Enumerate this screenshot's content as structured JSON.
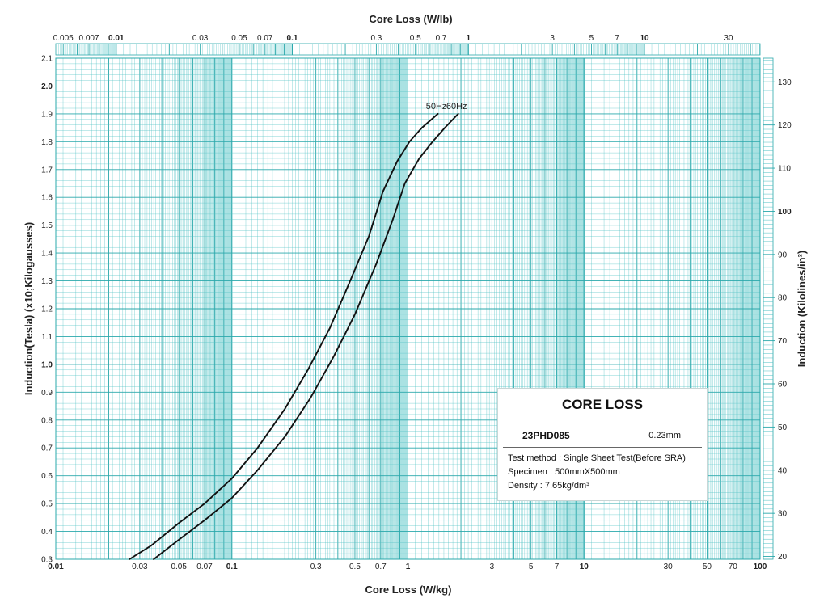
{
  "chart_data": {
    "type": "line",
    "title": "",
    "xlabel": "Core Loss (W/kg)",
    "xlabel_top": "Core Loss (W/lb)",
    "ylabel": "Induction(Tesla) (x10;Kilogausses)",
    "ylabel_right": "Induction (Kilolines/in²)",
    "x_scale": "log",
    "xlim": [
      0.01,
      100
    ],
    "ylim": [
      0.3,
      2.1
    ],
    "grid": true,
    "x_ticks": [
      {
        "v": 0.01,
        "label": "0.01",
        "bold": true
      },
      {
        "v": 0.03,
        "label": "0.03",
        "bold": false
      },
      {
        "v": 0.05,
        "label": "0.05",
        "bold": false
      },
      {
        "v": 0.07,
        "label": "0.07",
        "bold": false
      },
      {
        "v": 0.1,
        "label": "0.1",
        "bold": true
      },
      {
        "v": 0.3,
        "label": "0.3",
        "bold": false
      },
      {
        "v": 0.5,
        "label": "0.5",
        "bold": false
      },
      {
        "v": 0.7,
        "label": "0.7",
        "bold": false
      },
      {
        "v": 1,
        "label": "1",
        "bold": true
      },
      {
        "v": 3,
        "label": "3",
        "bold": false
      },
      {
        "v": 5,
        "label": "5",
        "bold": false
      },
      {
        "v": 7,
        "label": "7",
        "bold": false
      },
      {
        "v": 10,
        "label": "10",
        "bold": true
      },
      {
        "v": 30,
        "label": "30",
        "bold": false
      },
      {
        "v": 50,
        "label": "50",
        "bold": false
      },
      {
        "v": 70,
        "label": "70",
        "bold": false
      },
      {
        "v": 100,
        "label": "100",
        "bold": true
      }
    ],
    "x_top_ticks": [
      {
        "v": 0.005,
        "label": "0.005",
        "bold": false
      },
      {
        "v": 0.007,
        "label": "0.007",
        "bold": false
      },
      {
        "v": 0.01,
        "label": "0.01",
        "bold": true
      },
      {
        "v": 0.03,
        "label": "0.03",
        "bold": false
      },
      {
        "v": 0.05,
        "label": "0.05",
        "bold": false
      },
      {
        "v": 0.07,
        "label": "0.07",
        "bold": false
      },
      {
        "v": 0.1,
        "label": "0.1",
        "bold": true
      },
      {
        "v": 0.3,
        "label": "0.3",
        "bold": false
      },
      {
        "v": 0.5,
        "label": "0.5",
        "bold": false
      },
      {
        "v": 0.7,
        "label": "0.7",
        "bold": false
      },
      {
        "v": 1,
        "label": "1",
        "bold": true
      },
      {
        "v": 3,
        "label": "3",
        "bold": false
      },
      {
        "v": 5,
        "label": "5",
        "bold": false
      },
      {
        "v": 7,
        "label": "7",
        "bold": false
      },
      {
        "v": 10,
        "label": "10",
        "bold": true
      },
      {
        "v": 30,
        "label": "30",
        "bold": false
      }
    ],
    "y_ticks": [
      {
        "v": 0.3,
        "label": "0.3",
        "bold": false
      },
      {
        "v": 0.4,
        "label": "0.4",
        "bold": false
      },
      {
        "v": 0.5,
        "label": "0.5",
        "bold": false
      },
      {
        "v": 0.6,
        "label": "0.6",
        "bold": false
      },
      {
        "v": 0.7,
        "label": "0.7",
        "bold": false
      },
      {
        "v": 0.8,
        "label": "0.8",
        "bold": false
      },
      {
        "v": 0.9,
        "label": "0.9",
        "bold": false
      },
      {
        "v": 1.0,
        "label": "1.0",
        "bold": true
      },
      {
        "v": 1.1,
        "label": "1.1",
        "bold": false
      },
      {
        "v": 1.2,
        "label": "1.2",
        "bold": false
      },
      {
        "v": 1.3,
        "label": "1.3",
        "bold": false
      },
      {
        "v": 1.4,
        "label": "1.4",
        "bold": false
      },
      {
        "v": 1.5,
        "label": "1.5",
        "bold": false
      },
      {
        "v": 1.6,
        "label": "1.6",
        "bold": false
      },
      {
        "v": 1.7,
        "label": "1.7",
        "bold": false
      },
      {
        "v": 1.8,
        "label": "1.8",
        "bold": false
      },
      {
        "v": 1.9,
        "label": "1.9",
        "bold": false
      },
      {
        "v": 2.0,
        "label": "2.0",
        "bold": true
      },
      {
        "v": 2.1,
        "label": "2.1",
        "bold": false
      }
    ],
    "y_right_ticks": [
      {
        "v": 20,
        "label": "20",
        "bold": false
      },
      {
        "v": 30,
        "label": "30",
        "bold": false
      },
      {
        "v": 40,
        "label": "40",
        "bold": false
      },
      {
        "v": 50,
        "label": "50",
        "bold": false
      },
      {
        "v": 60,
        "label": "60",
        "bold": false
      },
      {
        "v": 70,
        "label": "70",
        "bold": false
      },
      {
        "v": 80,
        "label": "80",
        "bold": false
      },
      {
        "v": 90,
        "label": "90",
        "bold": false
      },
      {
        "v": 100,
        "label": "100",
        "bold": true
      },
      {
        "v": 110,
        "label": "110",
        "bold": false
      },
      {
        "v": 120,
        "label": "120",
        "bold": false
      },
      {
        "v": 130,
        "label": "130",
        "bold": false
      }
    ],
    "series": [
      {
        "name": "50Hz",
        "x": [
          0.0262,
          0.035,
          0.05,
          0.07,
          0.1,
          0.14,
          0.2,
          0.27,
          0.36,
          0.47,
          0.6,
          0.72,
          0.87,
          1.02,
          1.2,
          1.48
        ],
        "y": [
          0.3,
          0.35,
          0.43,
          0.5,
          0.59,
          0.7,
          0.84,
          0.98,
          1.13,
          1.3,
          1.46,
          1.62,
          1.73,
          1.8,
          1.85,
          1.9
        ]
      },
      {
        "name": "60Hz",
        "x": [
          0.036,
          0.05,
          0.07,
          0.1,
          0.14,
          0.2,
          0.28,
          0.38,
          0.5,
          0.66,
          0.82,
          0.96,
          1.16,
          1.38,
          1.62,
          1.93
        ],
        "y": [
          0.3,
          0.37,
          0.44,
          0.52,
          0.62,
          0.74,
          0.88,
          1.03,
          1.18,
          1.36,
          1.52,
          1.65,
          1.74,
          1.8,
          1.85,
          1.9
        ]
      }
    ],
    "colors": {
      "grid": "#4fc1c4",
      "grid_major": "#2aa8ab",
      "curve": "#111111"
    }
  },
  "legend": {
    "title": "CORE LOSS",
    "grade": "23PHD085",
    "thickness": "0.23mm",
    "test_method": "Test method : Single Sheet Test(Before SRA)",
    "specimen": "Specimen : 500mmX500mm",
    "density": "Density : 7.65kg/dm³"
  }
}
